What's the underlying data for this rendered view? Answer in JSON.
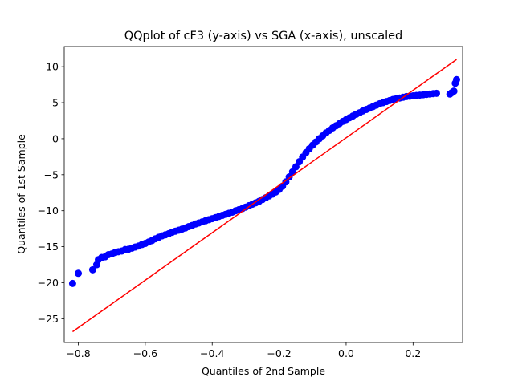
{
  "chart_data": {
    "type": "scatter",
    "title": "QQplot of cF3 (y-axis) vs SGA (x-axis), unscaled",
    "xlabel": "Quantiles of 2nd Sample",
    "ylabel": "Quantiles of 1st Sample",
    "xlim": [
      -0.842,
      0.348
    ],
    "ylim": [
      -28.3,
      12.8
    ],
    "x_ticks": [
      -0.8,
      -0.6,
      -0.4,
      -0.2,
      0.0,
      0.2
    ],
    "x_tick_labels": [
      "−0.8",
      "−0.6",
      "−0.4",
      "−0.2",
      "0.0",
      "0.2"
    ],
    "y_ticks": [
      -25,
      -20,
      -15,
      -10,
      -5,
      0,
      5,
      10
    ],
    "y_tick_labels": [
      "−25",
      "−20",
      "−15",
      "−10",
      "−5",
      "0",
      "5",
      "10"
    ],
    "grid": false,
    "legend": false,
    "series": [
      {
        "kind": "points",
        "color": "#0000ff",
        "x": [
          -0.817,
          -0.8,
          -0.757,
          -0.745,
          -0.74,
          -0.73,
          -0.72,
          -0.71,
          -0.7,
          -0.69,
          -0.68,
          -0.67,
          -0.66,
          -0.65,
          -0.64,
          -0.63,
          -0.62,
          -0.61,
          -0.6,
          -0.59,
          -0.58,
          -0.57,
          -0.56,
          -0.55,
          -0.54,
          -0.53,
          -0.52,
          -0.51,
          -0.5,
          -0.49,
          -0.48,
          -0.47,
          -0.46,
          -0.45,
          -0.44,
          -0.43,
          -0.42,
          -0.41,
          -0.4,
          -0.39,
          -0.38,
          -0.37,
          -0.36,
          -0.35,
          -0.34,
          -0.33,
          -0.32,
          -0.31,
          -0.3,
          -0.29,
          -0.28,
          -0.27,
          -0.26,
          -0.25,
          -0.24,
          -0.23,
          -0.22,
          -0.21,
          -0.2,
          -0.19,
          -0.18,
          -0.17,
          -0.16,
          -0.15,
          -0.14,
          -0.13,
          -0.12,
          -0.11,
          -0.1,
          -0.09,
          -0.08,
          -0.07,
          -0.06,
          -0.05,
          -0.04,
          -0.03,
          -0.02,
          -0.01,
          0.0,
          0.01,
          0.02,
          0.03,
          0.04,
          0.05,
          0.06,
          0.07,
          0.08,
          0.09,
          0.1,
          0.11,
          0.12,
          0.13,
          0.14,
          0.15,
          0.16,
          0.17,
          0.18,
          0.19,
          0.2,
          0.21,
          0.22,
          0.23,
          0.24,
          0.25,
          0.26,
          0.27,
          0.31,
          0.316,
          0.322,
          0.326,
          0.33
        ],
        "y": [
          -20.1,
          -18.7,
          -18.2,
          -17.5,
          -16.8,
          -16.5,
          -16.4,
          -16.1,
          -16.0,
          -15.8,
          -15.7,
          -15.6,
          -15.4,
          -15.35,
          -15.2,
          -15.05,
          -14.9,
          -14.7,
          -14.55,
          -14.35,
          -14.15,
          -13.9,
          -13.7,
          -13.5,
          -13.35,
          -13.2,
          -13.0,
          -12.85,
          -12.7,
          -12.55,
          -12.4,
          -12.2,
          -12.05,
          -11.85,
          -11.7,
          -11.55,
          -11.4,
          -11.25,
          -11.1,
          -10.95,
          -10.8,
          -10.65,
          -10.5,
          -10.35,
          -10.2,
          -10.0,
          -9.85,
          -9.7,
          -9.5,
          -9.3,
          -9.1,
          -8.9,
          -8.7,
          -8.45,
          -8.2,
          -7.95,
          -7.7,
          -7.4,
          -7.05,
          -6.6,
          -6.0,
          -5.3,
          -4.6,
          -3.9,
          -3.2,
          -2.55,
          -1.95,
          -1.4,
          -0.9,
          -0.45,
          0.0,
          0.4,
          0.8,
          1.15,
          1.5,
          1.8,
          2.1,
          2.4,
          2.65,
          2.9,
          3.15,
          3.4,
          3.6,
          3.85,
          4.05,
          4.25,
          4.45,
          4.65,
          4.85,
          5.0,
          5.15,
          5.3,
          5.45,
          5.55,
          5.65,
          5.75,
          5.85,
          5.9,
          5.95,
          6.0,
          6.05,
          6.1,
          6.15,
          6.2,
          6.25,
          6.3,
          6.2,
          6.4,
          6.6,
          7.7,
          8.2
        ]
      },
      {
        "kind": "line",
        "color": "#ff0000",
        "x": [
          -0.817,
          0.33
        ],
        "y": [
          -26.8,
          11.0
        ]
      }
    ]
  }
}
